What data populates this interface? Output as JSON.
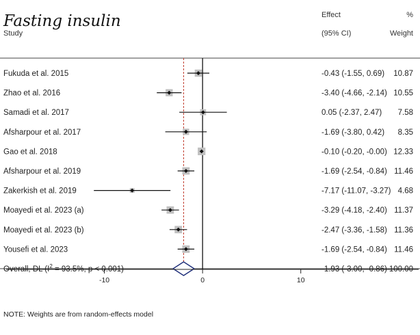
{
  "chart_data": {
    "type": "forest",
    "title": "Fasting insulin",
    "headers": {
      "study": "Study",
      "effect_line1": "Effect",
      "effect_line2": "(95% CI)",
      "weight_line1": "%",
      "weight_line2": "Weight"
    },
    "studies": [
      {
        "name": "Fukuda et al. 2015",
        "effect": -0.43,
        "lower": -1.55,
        "upper": 0.69,
        "ci_text": "-0.43 (-1.55, 0.69)",
        "weight": 10.87,
        "weight_text": "10.87"
      },
      {
        "name": "Zhao et al. 2016",
        "effect": -3.4,
        "lower": -4.66,
        "upper": -2.14,
        "ci_text": "-3.40 (-4.66, -2.14)",
        "weight": 10.55,
        "weight_text": "10.55"
      },
      {
        "name": "Samadi et al. 2017",
        "effect": 0.05,
        "lower": -2.37,
        "upper": 2.47,
        "ci_text": "0.05 (-2.37, 2.47)",
        "weight": 7.58,
        "weight_text": "7.58"
      },
      {
        "name": "Afsharpour et al. 2017",
        "effect": -1.69,
        "lower": -3.8,
        "upper": 0.42,
        "ci_text": "-1.69 (-3.80, 0.42)",
        "weight": 8.35,
        "weight_text": "8.35"
      },
      {
        "name": "Gao et al. 2018",
        "effect": -0.1,
        "lower": -0.2,
        "upper": 0.0,
        "ci_text": "-0.10 (-0.20, -0.00)",
        "weight": 12.33,
        "weight_text": "12.33"
      },
      {
        "name": "Afsharpour et al. 2019",
        "effect": -1.69,
        "lower": -2.54,
        "upper": -0.84,
        "ci_text": "-1.69 (-2.54, -0.84)",
        "weight": 11.46,
        "weight_text": "11.46"
      },
      {
        "name": "Zakerkish et al. 2019",
        "effect": -7.17,
        "lower": -11.07,
        "upper": -3.27,
        "ci_text": "-7.17 (-11.07, -3.27)",
        "weight": 4.68,
        "weight_text": "4.68"
      },
      {
        "name": "Moayedi et al. 2023 (a)",
        "effect": -3.29,
        "lower": -4.18,
        "upper": -2.4,
        "ci_text": "-3.29 (-4.18, -2.40)",
        "weight": 11.37,
        "weight_text": "11.37"
      },
      {
        "name": "Moayedi et al. 2023 (b)",
        "effect": -2.47,
        "lower": -3.36,
        "upper": -1.58,
        "ci_text": "-2.47 (-3.36, -1.58)",
        "weight": 11.36,
        "weight_text": "11.36"
      },
      {
        "name": "Yousefi et al. 2023",
        "effect": -1.69,
        "lower": -2.54,
        "upper": -0.84,
        "ci_text": "-1.69 (-2.54, -0.84)",
        "weight": 11.46,
        "weight_text": "11.46"
      }
    ],
    "overall": {
      "label_prefix": "Overall, DL (I",
      "label_sup": "2",
      "label_suffix": " = 93.5%, p < 0.001)",
      "effect": -1.93,
      "lower": -3.0,
      "upper": -0.86,
      "ci_text": "-1.93 (-3.00, -0.86)",
      "weight_text": "100.00"
    },
    "xlim": [
      -20,
      22
    ],
    "xticks": [
      -10,
      0,
      10
    ],
    "xtick_labels": [
      "-10",
      "0",
      "10"
    ],
    "note": "NOTE: Weights are from random-effects model",
    "colors": {
      "marker_box": "#c0c0c0",
      "diamond": "#1f2f7a",
      "overall_line": "#c0392b"
    }
  }
}
